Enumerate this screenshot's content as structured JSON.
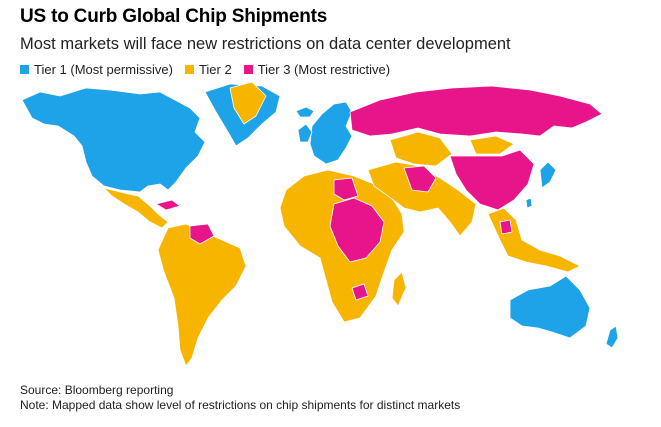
{
  "header": {
    "title": "US to Curb Global Chip Shipments",
    "subtitle": "Most markets will face new restrictions on data center development"
  },
  "legend": {
    "items": [
      {
        "label": "Tier 1 (Most permissive)",
        "color": "#1fa3e8"
      },
      {
        "label": "Tier 2",
        "color": "#f7b500"
      },
      {
        "label": "Tier 3 (Most restrictive)",
        "color": "#e8158a"
      }
    ]
  },
  "footer": {
    "source": "Source: Bloomberg reporting",
    "note": "Note: Mapped data show level of restrictions on chip shipments for distinct markets"
  }
}
